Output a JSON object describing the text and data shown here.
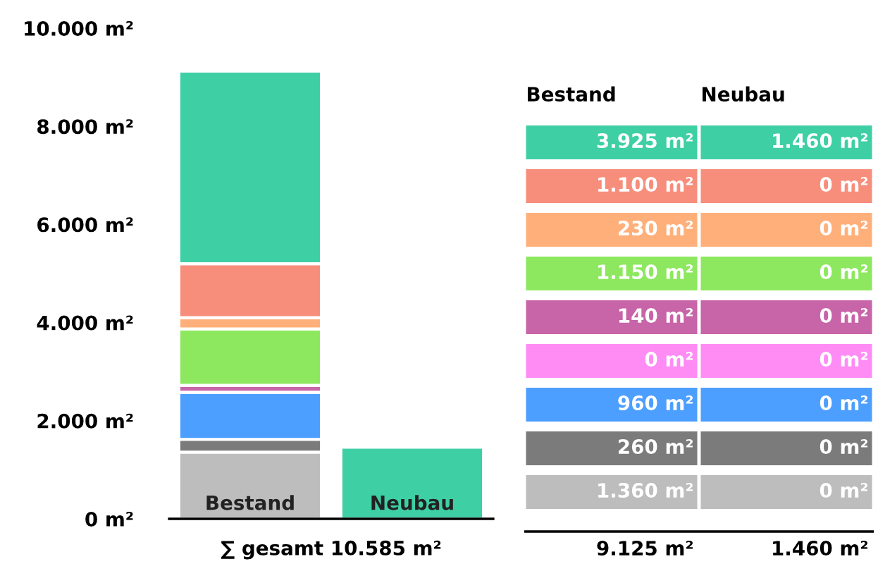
{
  "chart_data": [
    {
      "type": "bar",
      "stacked": true,
      "categories": [
        "Bestand",
        "Neubau"
      ],
      "series": [
        {
          "color": "#bdbdbd",
          "values": [
            1360,
            0
          ]
        },
        {
          "color": "#7b7b7b",
          "values": [
            260,
            0
          ]
        },
        {
          "color": "#4d9fff",
          "values": [
            960,
            0
          ]
        },
        {
          "color": "#ff8cf5",
          "values": [
            0,
            0
          ]
        },
        {
          "color": "#c864a8",
          "values": [
            140,
            0
          ]
        },
        {
          "color": "#8de85f",
          "values": [
            1150,
            0
          ]
        },
        {
          "color": "#ffb07a",
          "values": [
            230,
            0
          ]
        },
        {
          "color": "#f78e7c",
          "values": [
            1100,
            0
          ]
        },
        {
          "color": "#3ecfa5",
          "values": [
            3925,
            1460
          ]
        }
      ],
      "ylim": [
        0,
        10000
      ],
      "yticks": [
        {
          "value": 0,
          "label": "0 m²"
        },
        {
          "value": 2000,
          "label": "2.000 m²"
        },
        {
          "value": 4000,
          "label": "4.000 m²"
        },
        {
          "value": 6000,
          "label": "6.000 m²"
        },
        {
          "value": 8000,
          "label": "8.000 m²"
        },
        {
          "value": 10000,
          "label": "10.000 m²"
        }
      ],
      "grid": false,
      "legend": false,
      "tick_labels": "y",
      "annotations": [
        "∑ gesamt 10.585 m²"
      ]
    },
    {
      "type": "other",
      "annotations": [
        "Bestand",
        "Neubau",
        "3.925 m²",
        "1.460 m²",
        "1.100 m²",
        "0 m²",
        "230 m²",
        "0 m²",
        "1.150 m²",
        "0 m²",
        "140 m²",
        "0 m²",
        "0 m²",
        "0 m²",
        "960 m²",
        "0 m²",
        "260 m²",
        "0 m²",
        "1.360 m²",
        "0 m²",
        "9.125 m²",
        "1.460 m²"
      ]
    }
  ]
}
